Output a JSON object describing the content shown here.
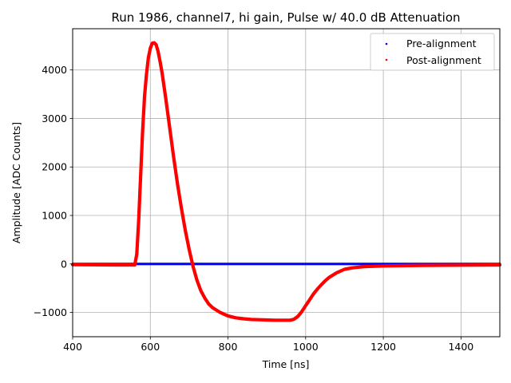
{
  "chart_data": {
    "type": "scatter",
    "title": "Run 1986, channel7, hi gain, Pulse w/ 40.0 dB Attenuation",
    "xlabel": "Time [ns]",
    "ylabel": "Amplitude [ADC Counts]",
    "xlim": [
      400,
      1500
    ],
    "ylim": [
      -1500,
      4850
    ],
    "xticks": [
      400,
      600,
      800,
      1000,
      1200,
      1400
    ],
    "xtick_labels": [
      "400",
      "600",
      "800",
      "1000",
      "1200",
      "1400"
    ],
    "yticks": [
      -1000,
      0,
      1000,
      2000,
      3000,
      4000
    ],
    "ytick_labels": [
      "−1000",
      "0",
      "1000",
      "2000",
      "3000",
      "4000"
    ],
    "grid": true,
    "legend_position": "top-right",
    "series": [
      {
        "name": "Pre-alignment",
        "color": "#0000ff",
        "x": [
          400,
          500,
          560,
          600,
          700,
          800,
          900,
          1000,
          1100,
          1200,
          1300,
          1400,
          1500
        ],
        "y": [
          0,
          0,
          0,
          0,
          0,
          0,
          0,
          0,
          0,
          0,
          0,
          0,
          0
        ]
      },
      {
        "name": "Post-alignment",
        "color": "#ff0000",
        "x": [
          400,
          500,
          560,
          565,
          570,
          575,
          580,
          585,
          590,
          595,
          600,
          605,
          610,
          615,
          620,
          625,
          630,
          640,
          650,
          660,
          670,
          680,
          690,
          700,
          710,
          720,
          730,
          740,
          750,
          760,
          780,
          800,
          820,
          840,
          860,
          880,
          900,
          920,
          940,
          960,
          970,
          980,
          990,
          1000,
          1010,
          1020,
          1030,
          1040,
          1050,
          1060,
          1080,
          1100,
          1120,
          1150,
          1200,
          1300,
          1400,
          1500
        ],
        "y": [
          -15,
          -20,
          -20,
          200,
          900,
          1800,
          2700,
          3450,
          3900,
          4250,
          4450,
          4550,
          4560,
          4520,
          4380,
          4180,
          3950,
          3400,
          2800,
          2200,
          1650,
          1150,
          700,
          300,
          -50,
          -330,
          -550,
          -700,
          -820,
          -900,
          -1000,
          -1070,
          -1110,
          -1130,
          -1145,
          -1150,
          -1155,
          -1160,
          -1160,
          -1160,
          -1140,
          -1080,
          -980,
          -860,
          -740,
          -620,
          -520,
          -430,
          -350,
          -280,
          -180,
          -110,
          -80,
          -55,
          -40,
          -30,
          -25,
          -20
        ]
      }
    ]
  }
}
